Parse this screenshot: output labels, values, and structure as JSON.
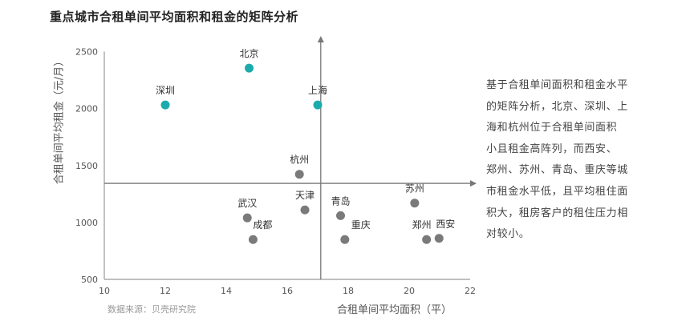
{
  "title": "重点城市合租单间平均面积和租金的矩阵分析",
  "chart_data": {
    "type": "scatter",
    "title": "重点城市合租单间平均面积和租金的矩阵分析",
    "xlabel": "合租单间平均面积（平）",
    "ylabel": "合租单间平均租金（元/月）",
    "xlim": [
      10,
      22
    ],
    "ylim": [
      500,
      2500
    ],
    "xticks": [
      10,
      12,
      14,
      16,
      18,
      20,
      22
    ],
    "yticks": [
      500,
      1000,
      1500,
      2000,
      2500
    ],
    "grid": false,
    "quadrant_lines": {
      "x": 17.1,
      "y": 1343
    },
    "points": [
      {
        "name": "北京",
        "x": 14.75,
        "y": 2355,
        "group": "high"
      },
      {
        "name": "深圳",
        "x": 12.0,
        "y": 2032,
        "group": "high"
      },
      {
        "name": "上海",
        "x": 17.0,
        "y": 2032,
        "group": "high"
      },
      {
        "name": "杭州",
        "x": 16.4,
        "y": 1423,
        "group": "other"
      },
      {
        "name": "天津",
        "x": 16.58,
        "y": 1110,
        "group": "other"
      },
      {
        "name": "武汉",
        "x": 14.69,
        "y": 1040,
        "group": "other"
      },
      {
        "name": "成都",
        "x": 14.88,
        "y": 850,
        "group": "other"
      },
      {
        "name": "青岛",
        "x": 17.75,
        "y": 1060,
        "group": "other"
      },
      {
        "name": "重庆",
        "x": 17.89,
        "y": 850,
        "group": "other"
      },
      {
        "name": "苏州",
        "x": 20.18,
        "y": 1170,
        "group": "other"
      },
      {
        "name": "郑州",
        "x": 20.57,
        "y": 850,
        "group": "other"
      },
      {
        "name": "西安",
        "x": 20.98,
        "y": 860,
        "group": "other"
      }
    ],
    "colors": {
      "high": "#1BABAD",
      "other": "#7a7a7a",
      "axis": "#999999",
      "quadrant": "#777777"
    }
  },
  "source": "数据来源：贝壳研究院",
  "description_lines": [
    "基于合租单间面积和租金水平",
    "的矩阵分析，北京、深圳、上",
    "海和杭州位于合租单间面积",
    "小且租金高阵列，而西安、",
    "郑州、苏州、青岛、重庆等城",
    "市租金水平低，且平均租住面",
    "积大，租房客户的租住压力相",
    "对较小。"
  ]
}
